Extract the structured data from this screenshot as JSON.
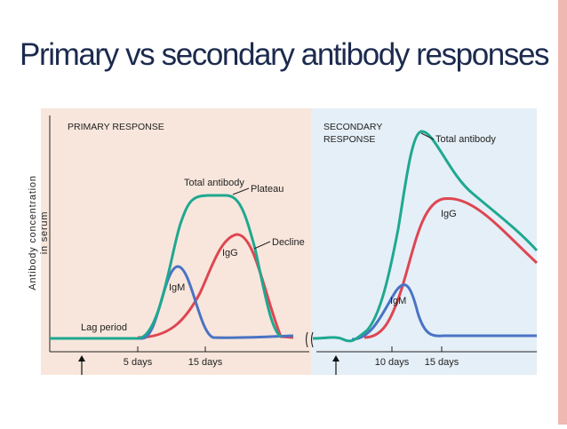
{
  "title": "Primary vs secondary antibody responses",
  "diagram": {
    "primary_label": "PRIMARY RESPONSE",
    "secondary_label_line1": "SECONDARY",
    "secondary_label_line2": "RESPONSE",
    "y_axis_line1": "Antibody concentration",
    "y_axis_line2": "in serum",
    "lag_period": "Lag period",
    "annotations": {
      "total_antibody_primary": "Total antibody",
      "plateau": "Plateau",
      "decline": "Decline",
      "igg_primary": "IgG",
      "igm_primary": "IgM",
      "total_antibody_secondary": "Total antibody",
      "igg_secondary": "IgG",
      "igm_secondary": "IgM"
    },
    "ticks": {
      "primary_5": "5 days",
      "primary_15": "15 days",
      "secondary_10": "10 days",
      "secondary_15": "15 days"
    },
    "colors": {
      "primary_bg": "#f8e6dc",
      "secondary_bg": "#e5eff7",
      "total_antibody": "#1fa890",
      "igg": "#de4652",
      "igm": "#4a73c4",
      "right_bar": "#efb8b0"
    }
  }
}
